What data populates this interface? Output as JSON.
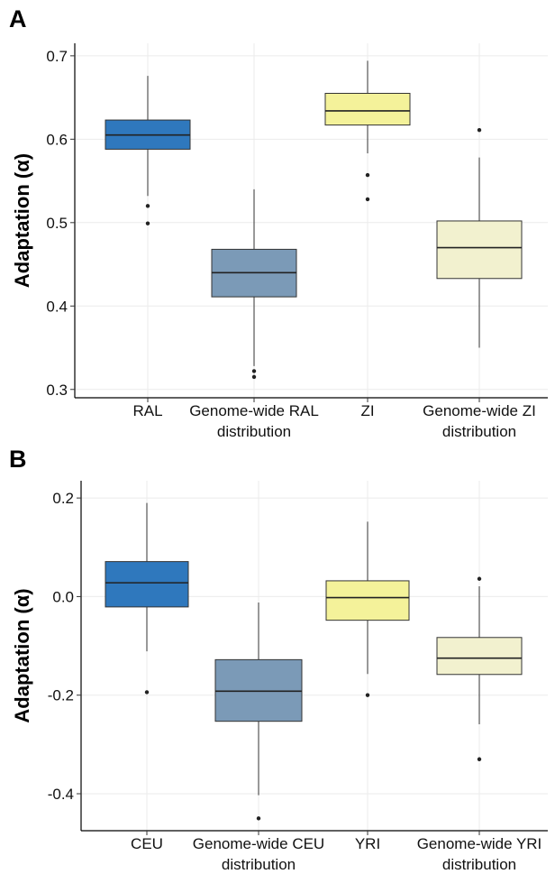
{
  "chart_data": [
    {
      "type": "box",
      "panel": "A",
      "ylabel": "Adaptation (α)",
      "ylim": [
        0.29,
        0.715
      ],
      "yticks": [
        "0.3",
        "0.4",
        "0.5",
        "0.6",
        "0.7"
      ],
      "ytick_values": [
        0.3,
        0.4,
        0.5,
        0.6,
        0.7
      ],
      "grid": true,
      "categories": [
        {
          "label1": "RAL",
          "label2": ""
        },
        {
          "label1": "Genome-wide RAL",
          "label2": "distribution"
        },
        {
          "label1": "ZI",
          "label2": ""
        },
        {
          "label1": "Genome-wide ZI",
          "label2": "distribution"
        }
      ],
      "boxes": [
        {
          "color": "#2f78bd",
          "whisker_low": 0.532,
          "q1": 0.588,
          "median": 0.605,
          "q3": 0.623,
          "whisker_high": 0.676,
          "outliers": [
            0.52,
            0.499
          ]
        },
        {
          "color": "#7b9ab7",
          "whisker_low": 0.328,
          "q1": 0.411,
          "median": 0.44,
          "q3": 0.468,
          "whisker_high": 0.54,
          "outliers": [
            0.322,
            0.315
          ]
        },
        {
          "color": "#f4f29a",
          "whisker_low": 0.583,
          "q1": 0.617,
          "median": 0.634,
          "q3": 0.655,
          "whisker_high": 0.694,
          "outliers": [
            0.557,
            0.528
          ]
        },
        {
          "color": "#f2f1cf",
          "whisker_low": 0.35,
          "q1": 0.433,
          "median": 0.47,
          "q3": 0.502,
          "whisker_high": 0.578,
          "outliers": [
            0.611
          ]
        }
      ]
    },
    {
      "type": "box",
      "panel": "B",
      "ylabel": "Adaptation (α)",
      "ylim": [
        -0.475,
        0.235
      ],
      "yticks": [
        "0.2",
        "0.0",
        "-0.2",
        "-0.4"
      ],
      "ytick_values": [
        0.2,
        0.0,
        -0.2,
        -0.4
      ],
      "grid": true,
      "categories": [
        {
          "label1": "CEU",
          "label2": ""
        },
        {
          "label1": "Genome-wide CEU",
          "label2": "distribution"
        },
        {
          "label1": "YRI",
          "label2": ""
        },
        {
          "label1": "Genome-wide YRI",
          "label2": "distribution"
        }
      ],
      "boxes": [
        {
          "color": "#2f78bd",
          "whisker_low": -0.111,
          "q1": -0.021,
          "median": 0.028,
          "q3": 0.071,
          "whisker_high": 0.19,
          "outliers": [
            -0.194
          ]
        },
        {
          "color": "#7b9ab7",
          "whisker_low": -0.403,
          "q1": -0.253,
          "median": -0.192,
          "q3": -0.128,
          "whisker_high": -0.012,
          "outliers": [
            -0.45
          ]
        },
        {
          "color": "#f4f29a",
          "whisker_low": -0.157,
          "q1": -0.048,
          "median": -0.002,
          "q3": 0.032,
          "whisker_high": 0.152,
          "outliers": [
            -0.2
          ]
        },
        {
          "color": "#f2f1cf",
          "whisker_low": -0.259,
          "q1": -0.158,
          "median": -0.125,
          "q3": -0.083,
          "whisker_high": 0.021,
          "outliers": [
            0.036,
            -0.33
          ]
        }
      ]
    }
  ]
}
